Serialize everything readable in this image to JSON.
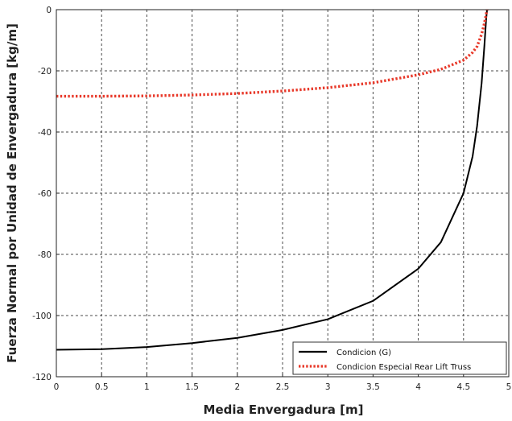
{
  "chart_data": {
    "type": "line",
    "title": "",
    "xlabel": "Media Envergadura [m]",
    "ylabel": "Fuerza Normal por Unidad de Envergadura [kg/m]",
    "xlim": [
      0,
      5
    ],
    "ylim": [
      -120,
      0
    ],
    "xticks": [
      0,
      0.5,
      1,
      1.5,
      2,
      2.5,
      3,
      3.5,
      4,
      4.5,
      5
    ],
    "xtick_labels": [
      "0",
      "0.5",
      "1",
      "1.5",
      "2",
      "2.5",
      "3",
      "3.5",
      "4",
      "4.5",
      "5"
    ],
    "yticks": [
      0,
      -20,
      -40,
      -60,
      -80,
      -100,
      -120
    ],
    "ytick_labels": [
      "0",
      "-20",
      "-40",
      "-60",
      "-80",
      "-100",
      "-120"
    ],
    "grid": true,
    "legend_position": "bottom-right",
    "series": [
      {
        "name": "Condicion (G)",
        "color": "#000000",
        "style": "solid",
        "points": [
          [
            0,
            -111.2
          ],
          [
            0.5,
            -111.0
          ],
          [
            1,
            -110.3
          ],
          [
            1.5,
            -109.0
          ],
          [
            2,
            -107.3
          ],
          [
            2.5,
            -104.7
          ],
          [
            3,
            -101.2
          ],
          [
            3.5,
            -95.2
          ],
          [
            4,
            -84.7
          ],
          [
            4.25,
            -76.0
          ],
          [
            4.5,
            -60.0
          ],
          [
            4.6,
            -48.0
          ],
          [
            4.65,
            -38.0
          ],
          [
            4.7,
            -24.0
          ],
          [
            4.73,
            -12.0
          ],
          [
            4.75,
            -3.0
          ],
          [
            4.76,
            0
          ]
        ]
      },
      {
        "name": "Condicion Especial Rear Lift Truss",
        "color": "#e8392a",
        "style": "dotted",
        "points": [
          [
            0,
            -28.3
          ],
          [
            0.5,
            -28.3
          ],
          [
            1,
            -28.2
          ],
          [
            1.5,
            -27.9
          ],
          [
            2,
            -27.4
          ],
          [
            2.5,
            -26.6
          ],
          [
            3,
            -25.5
          ],
          [
            3.5,
            -23.9
          ],
          [
            4,
            -21.3
          ],
          [
            4.25,
            -19.5
          ],
          [
            4.5,
            -16.5
          ],
          [
            4.6,
            -14.0
          ],
          [
            4.65,
            -12.0
          ],
          [
            4.7,
            -8.0
          ],
          [
            4.73,
            -4.5
          ],
          [
            4.75,
            -1.5
          ],
          [
            4.76,
            0
          ]
        ]
      }
    ]
  }
}
